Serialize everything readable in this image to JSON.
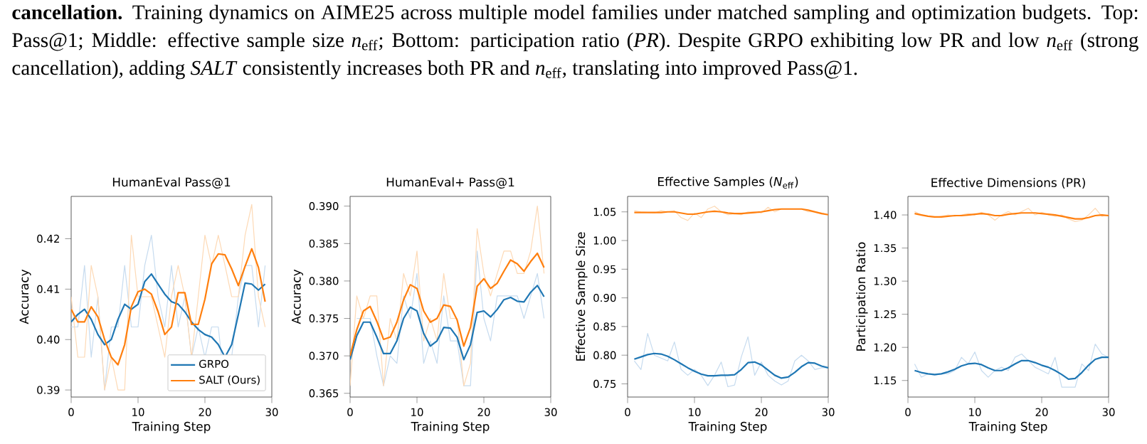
{
  "chart_data": [
    {
      "type": "line",
      "title": "HumanEval Pass@1",
      "xlabel": "Training Step",
      "ylabel": "Accuracy",
      "annotations": [
        "**cancellation.** Training dynamics on AIME25 across multiple model families under matched sampling and optimization budgets. Top: Pass@1; Middle: effective sample size *n*$_{eff}$; Bottom: participation ratio (*PR*). Despite GRPO exhibiting low PR and low *n*$_{eff}$ (strong cancellation), adding *SALT* consistently increases both PR and *n*$_{eff}$, translating into improved Pass@1."
      ],
      "x": [
        0,
        1,
        2,
        3,
        4,
        5,
        6,
        7,
        8,
        9,
        10,
        11,
        12,
        13,
        14,
        15,
        16,
        17,
        18,
        19,
        20,
        21,
        22,
        23,
        24,
        25,
        26,
        27,
        28,
        29
      ],
      "xlim": [
        0,
        30
      ],
      "xticks": [
        0,
        10,
        20,
        30
      ],
      "ylim": [
        0.3886,
        0.4284
      ],
      "yticks": [
        0.39,
        {
          "value": 0.4,
          "label": "0.40"
        },
        0.41,
        0.42
      ],
      "legend": "bottom right",
      "series": [
        {
          "color": "#c6dbef",
          "values": [
            0.4025,
            0.4025,
            0.4147,
            0.3965,
            0.4085,
            0.39,
            0.4025,
            0.4025,
            0.4147,
            0.4025,
            0.4025,
            0.4147,
            0.4207,
            0.4085,
            0.4025,
            0.4147,
            0.4025,
            0.4085,
            0.3965,
            0.4025,
            0.3965,
            0.4025,
            0.4025,
            0.39,
            0.3965,
            0.4085,
            0.4147,
            0.4147,
            0.4025,
            0.4147
          ]
        },
        {
          "color": "#fdd9b5",
          "values": [
            0.4085,
            0.3965,
            0.3965,
            0.4147,
            0.4085,
            0.39,
            0.3965,
            0.39,
            0.39,
            0.4207,
            0.4085,
            0.4085,
            0.4085,
            0.4025,
            0.3965,
            0.4085,
            0.4147,
            0.4085,
            0.3965,
            0.4085,
            0.4207,
            0.4147,
            0.4207,
            0.4147,
            0.4085,
            0.4085,
            0.4207,
            0.4268,
            0.4085,
            0.4025
          ]
        },
        {
          "name": "GRPO",
          "color": "#1f77b4",
          "values": [
            0.4035,
            0.405,
            0.406,
            0.404,
            0.401,
            0.399,
            0.4,
            0.404,
            0.407,
            0.406,
            0.407,
            0.4115,
            0.413,
            0.411,
            0.409,
            0.4075,
            0.407,
            0.4055,
            0.4035,
            0.402,
            0.401,
            0.4005,
            0.399,
            0.3965,
            0.399,
            0.405,
            0.4112,
            0.411,
            0.4098,
            0.411
          ]
        },
        {
          "name": "SALT (Ours)",
          "color": "#ff7f0e",
          "values": [
            0.406,
            0.4035,
            0.4035,
            0.4065,
            0.4045,
            0.4,
            0.3965,
            0.395,
            0.399,
            0.4065,
            0.4095,
            0.41,
            0.409,
            0.4055,
            0.401,
            0.4025,
            0.4093,
            0.4093,
            0.403,
            0.403,
            0.408,
            0.415,
            0.417,
            0.4168,
            0.414,
            0.4107,
            0.4145,
            0.418,
            0.4143,
            0.4075
          ]
        }
      ]
    },
    {
      "type": "line",
      "title": "HumanEval+ Pass@1",
      "xlabel": "Training Step",
      "ylabel": "Accuracy",
      "x": [
        0,
        1,
        2,
        3,
        4,
        5,
        6,
        7,
        8,
        9,
        10,
        11,
        12,
        13,
        14,
        15,
        16,
        17,
        18,
        19,
        20,
        21,
        22,
        23,
        24,
        25,
        26,
        27,
        28,
        29
      ],
      "xlim": [
        0,
        30
      ],
      "xticks": [
        0,
        10,
        20,
        30
      ],
      "ylim": [
        0.3645,
        0.3913
      ],
      "yticks": [
        0.365,
        {
          "value": 0.37,
          "label": "0.370"
        },
        0.375,
        {
          "value": 0.38,
          "label": "0.380"
        },
        0.385,
        {
          "value": 0.39,
          "label": "0.390"
        }
      ],
      "series": [
        {
          "color": "#c6dbef",
          "values": [
            null,
            0.375,
            0.375,
            0.375,
            0.37,
            0.366,
            0.37,
            0.369,
            0.378,
            0.375,
            0.381,
            0.369,
            0.372,
            0.369,
            0.378,
            0.372,
            0.372,
            0.366,
            0.366,
            0.384,
            0.375,
            0.372,
            0.378,
            0.378,
            0.378,
            0.378,
            0.375,
            0.378,
            0.381,
            0.375
          ]
        },
        {
          "color": "#fdd9b5",
          "values": [
            0.366,
            0.378,
            0.375,
            0.378,
            0.378,
            0.366,
            0.375,
            0.372,
            0.381,
            0.378,
            0.384,
            0.372,
            0.375,
            0.372,
            0.381,
            0.375,
            0.375,
            0.366,
            0.369,
            0.387,
            0.381,
            0.378,
            0.381,
            0.384,
            0.384,
            0.381,
            0.381,
            0.384,
            0.39,
            0.381
          ]
        },
        {
          "color": "#1f77b4",
          "values": [
            0.3695,
            0.3727,
            0.3745,
            0.3745,
            0.3725,
            0.3703,
            0.3703,
            0.372,
            0.375,
            0.3765,
            0.376,
            0.373,
            0.3713,
            0.372,
            0.3738,
            0.3737,
            0.3725,
            0.3695,
            0.3715,
            0.3758,
            0.376,
            0.3752,
            0.3762,
            0.3775,
            0.3778,
            0.3773,
            0.3772,
            0.3785,
            0.3794,
            0.3779
          ]
        },
        {
          "color": "#ff7f0e",
          "values": [
            0.37,
            0.3735,
            0.376,
            0.3766,
            0.3746,
            0.3722,
            0.3725,
            0.3745,
            0.3775,
            0.3795,
            0.379,
            0.376,
            0.3745,
            0.375,
            0.3768,
            0.3766,
            0.3748,
            0.3713,
            0.3738,
            0.3793,
            0.3803,
            0.379,
            0.3797,
            0.3813,
            0.3828,
            0.3823,
            0.3813,
            0.3826,
            0.3837,
            0.3818
          ]
        }
      ]
    },
    {
      "type": "line",
      "title": "Effective Samples (*N*$_{eff}$)",
      "xlabel": "Training Step",
      "ylabel": "Effective Sample Size",
      "x": [
        1,
        2,
        3,
        4,
        5,
        6,
        7,
        8,
        9,
        10,
        11,
        12,
        13,
        14,
        15,
        16,
        17,
        18,
        19,
        20,
        21,
        22,
        23,
        24,
        25,
        26,
        27,
        28,
        29,
        30
      ],
      "xlim": [
        0,
        30
      ],
      "xticks": [
        0,
        10,
        20,
        30
      ],
      "ylim": [
        0.727,
        1.077
      ],
      "yticks": [
        0.75,
        {
          "value": 0.8,
          "label": "0.80"
        },
        0.85,
        {
          "value": 0.9,
          "label": "0.90"
        },
        0.95,
        {
          "value": 1.0,
          "label": "1.00"
        },
        1.05
      ],
      "series": [
        {
          "color": "#c6dbef",
          "values": [
            0.79,
            0.775,
            0.838,
            0.8,
            0.795,
            0.79,
            0.823,
            0.775,
            0.765,
            0.775,
            0.765,
            0.747,
            0.765,
            0.788,
            0.745,
            0.748,
            0.797,
            0.832,
            0.765,
            0.788,
            0.765,
            0.755,
            0.748,
            0.755,
            0.79,
            0.8,
            0.79,
            0.775,
            0.778,
            0.778
          ]
        },
        {
          "color": "#fdd9b5",
          "values": [
            1.052,
            1.05,
            null,
            1.048,
            1.052,
            1.05,
            1.052,
            1.04,
            1.035,
            1.048,
            1.04,
            1.055,
            1.06,
            1.05,
            1.045,
            1.047,
            1.045,
            1.05,
            1.05,
            1.048,
            1.058,
            1.05,
            1.055,
            1.055,
            1.055,
            1.055,
            1.05,
            1.05,
            1.048,
            1.045
          ]
        },
        {
          "color": "#1f77b4",
          "values": [
            0.793,
            0.797,
            0.801,
            0.803,
            0.802,
            0.798,
            0.792,
            0.785,
            0.778,
            0.772,
            0.767,
            0.764,
            0.764,
            0.765,
            0.765,
            0.766,
            0.775,
            0.787,
            0.788,
            0.783,
            0.774,
            0.765,
            0.76,
            0.762,
            0.77,
            0.78,
            0.787,
            0.786,
            0.781,
            0.778
          ]
        },
        {
          "color": "#ff7f0e",
          "values": [
            1.049,
            1.049,
            1.049,
            1.049,
            1.049,
            1.05,
            1.05,
            1.048,
            1.046,
            1.046,
            1.048,
            1.05,
            1.051,
            1.05,
            1.048,
            1.047,
            1.047,
            1.048,
            1.049,
            1.05,
            1.052,
            1.054,
            1.055,
            1.055,
            1.055,
            1.055,
            1.053,
            1.05,
            1.047,
            1.045
          ]
        }
      ]
    },
    {
      "type": "line",
      "title": "Effective Dimensions (PR)",
      "xlabel": "Training Step",
      "ylabel": "Participation Ratio",
      "x": [
        1,
        2,
        3,
        4,
        5,
        6,
        7,
        8,
        9,
        10,
        11,
        12,
        13,
        14,
        15,
        16,
        17,
        18,
        19,
        20,
        21,
        22,
        23,
        24,
        25,
        26,
        27,
        28,
        29,
        30
      ],
      "xlim": [
        0,
        30
      ],
      "xticks": [
        0,
        10,
        20,
        30
      ],
      "ylim": [
        1.125,
        1.428
      ],
      "yticks": [
        1.15,
        {
          "value": 1.2,
          "label": "1.20"
        },
        1.25,
        {
          "value": 1.3,
          "label": "1.30"
        },
        1.35,
        {
          "value": 1.4,
          "label": "1.40"
        }
      ],
      "series": [
        {
          "color": "#c6dbef",
          "values": [
            1.175,
            1.155,
            1.16,
            1.158,
            1.16,
            1.16,
            1.165,
            1.185,
            1.175,
            1.193,
            1.165,
            1.155,
            1.165,
            1.17,
            1.165,
            1.185,
            1.19,
            1.18,
            1.17,
            1.165,
            1.16,
            1.185,
            1.14,
            1.14,
            1.14,
            1.175,
            1.165,
            1.205,
            1.19,
            1.185
          ]
        },
        {
          "color": "#fdd9b5",
          "values": [
            1.405,
            1.4,
            1.398,
            1.396,
            1.398,
            1.4,
            1.398,
            1.4,
            1.402,
            1.4,
            1.404,
            1.4,
            1.392,
            1.4,
            1.405,
            1.4,
            1.405,
            1.41,
            1.4,
            1.404,
            1.4,
            1.398,
            1.4,
            1.394,
            1.39,
            1.392,
            1.4,
            1.41,
            1.398,
            1.4
          ]
        },
        {
          "color": "#1f77b4",
          "values": [
            1.165,
            1.162,
            1.16,
            1.159,
            1.16,
            1.163,
            1.167,
            1.172,
            1.175,
            1.176,
            1.174,
            1.169,
            1.165,
            1.165,
            1.169,
            1.175,
            1.18,
            1.18,
            1.177,
            1.173,
            1.17,
            1.165,
            1.159,
            1.152,
            1.153,
            1.162,
            1.173,
            1.182,
            1.185,
            1.185
          ]
        },
        {
          "color": "#ff7f0e",
          "values": [
            1.402,
            1.4,
            1.398,
            1.397,
            1.397,
            1.398,
            1.399,
            1.399,
            1.4,
            1.401,
            1.402,
            1.401,
            1.399,
            1.399,
            1.401,
            1.402,
            1.403,
            1.403,
            1.403,
            1.402,
            1.401,
            1.4,
            1.398,
            1.396,
            1.394,
            1.394,
            1.396,
            1.399,
            1.4,
            1.399
          ]
        }
      ]
    }
  ]
}
